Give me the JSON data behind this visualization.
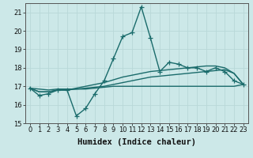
{
  "title": "",
  "xlabel": "Humidex (Indice chaleur)",
  "ylabel": "",
  "background_color": "#cce8e8",
  "grid_color": "#b8d8d8",
  "line_color": "#1a6b6b",
  "x": [
    0,
    1,
    2,
    3,
    4,
    5,
    6,
    7,
    8,
    9,
    10,
    11,
    12,
    13,
    14,
    15,
    16,
    17,
    18,
    19,
    20,
    21,
    22,
    23
  ],
  "y_main": [
    16.9,
    16.5,
    16.6,
    16.8,
    16.8,
    15.4,
    15.8,
    16.6,
    17.3,
    18.5,
    19.7,
    19.9,
    21.3,
    19.6,
    17.8,
    18.3,
    18.2,
    18.0,
    18.0,
    17.8,
    18.0,
    17.8,
    17.3,
    17.1
  ],
  "y_line_flat": [
    16.9,
    16.85,
    16.8,
    16.85,
    16.85,
    16.85,
    16.85,
    16.9,
    16.95,
    17.0,
    17.0,
    17.0,
    17.0,
    17.0,
    17.0,
    17.0,
    17.0,
    17.0,
    17.0,
    17.0,
    17.0,
    17.0,
    17.0,
    17.1
  ],
  "y_line_mid": [
    16.9,
    16.7,
    16.7,
    16.8,
    16.8,
    16.85,
    16.9,
    16.95,
    17.0,
    17.1,
    17.2,
    17.3,
    17.4,
    17.5,
    17.55,
    17.6,
    17.65,
    17.7,
    17.75,
    17.8,
    17.85,
    17.9,
    17.7,
    17.1
  ],
  "y_line_upper": [
    16.9,
    16.7,
    16.7,
    16.8,
    16.8,
    16.9,
    17.0,
    17.1,
    17.2,
    17.35,
    17.5,
    17.6,
    17.7,
    17.8,
    17.85,
    17.9,
    17.95,
    18.0,
    18.05,
    18.1,
    18.1,
    18.0,
    17.7,
    17.1
  ],
  "ylim": [
    15.0,
    21.5
  ],
  "xlim": [
    -0.5,
    23.5
  ],
  "yticks": [
    15,
    16,
    17,
    18,
    19,
    20,
    21
  ],
  "xticks": [
    0,
    1,
    2,
    3,
    4,
    5,
    6,
    7,
    8,
    9,
    10,
    11,
    12,
    13,
    14,
    15,
    16,
    17,
    18,
    19,
    20,
    21,
    22,
    23
  ],
  "marker": "+",
  "markersize": 4,
  "linewidth": 1.0,
  "tick_fontsize": 6,
  "xlabel_fontsize": 7.5
}
